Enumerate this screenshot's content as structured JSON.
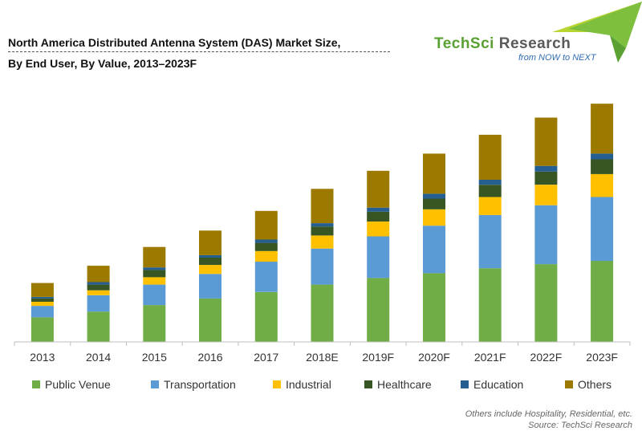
{
  "title_lines": [
    "North America Distributed Antenna System (DAS) Market Size,",
    "By End User, By Value, 2013–2023F"
  ],
  "logo": {
    "name_part1": "TechSci",
    "name_part2": " Research",
    "tagline": "from NOW to NEXT",
    "accent_colors": [
      "#5aa032",
      "#b9d531",
      "#7fbf3f"
    ]
  },
  "chart_data": {
    "type": "bar",
    "stacked": true,
    "title": "North America Distributed Antenna System (DAS) Market Size, By End User, By Value, 2013–2023F",
    "xlabel": "",
    "ylabel": "",
    "grid": false,
    "y_axis_visible": false,
    "legend_position": "bottom",
    "categories": [
      "2013",
      "2014",
      "2015",
      "2016",
      "2017",
      "2018E",
      "2019F",
      "2020F",
      "2021F",
      "2022F",
      "2023F"
    ],
    "series": [
      {
        "name": "Public Venue",
        "color": "#70ad47",
        "values": [
          30,
          37,
          45,
          53,
          61,
          70,
          78,
          84,
          90,
          95,
          99
        ]
      },
      {
        "name": "Transportation",
        "color": "#5b9bd5",
        "values": [
          14,
          20,
          25,
          30,
          37,
          44,
          51,
          58,
          65,
          72,
          78
        ]
      },
      {
        "name": "Industrial",
        "color": "#ffc000",
        "values": [
          5,
          6,
          9,
          11,
          13,
          16,
          18,
          20,
          22,
          25,
          28
        ]
      },
      {
        "name": "Healthcare",
        "color": "#375623",
        "values": [
          4,
          7,
          9,
          9,
          10,
          11,
          12,
          13,
          15,
          16,
          18
        ]
      },
      {
        "name": "Education",
        "color": "#255e91",
        "values": [
          2,
          3,
          3,
          3,
          4,
          4,
          5,
          6,
          6,
          7,
          7
        ]
      },
      {
        "name": "Others",
        "color": "#9c7a00",
        "values": [
          17,
          20,
          25,
          30,
          35,
          42,
          45,
          49,
          55,
          59,
          61
        ]
      }
    ],
    "ylim": [
      0,
      300
    ]
  },
  "footnotes": [
    "Others include Hospitality, Residential, etc.",
    "Source: TechSci Research"
  ]
}
